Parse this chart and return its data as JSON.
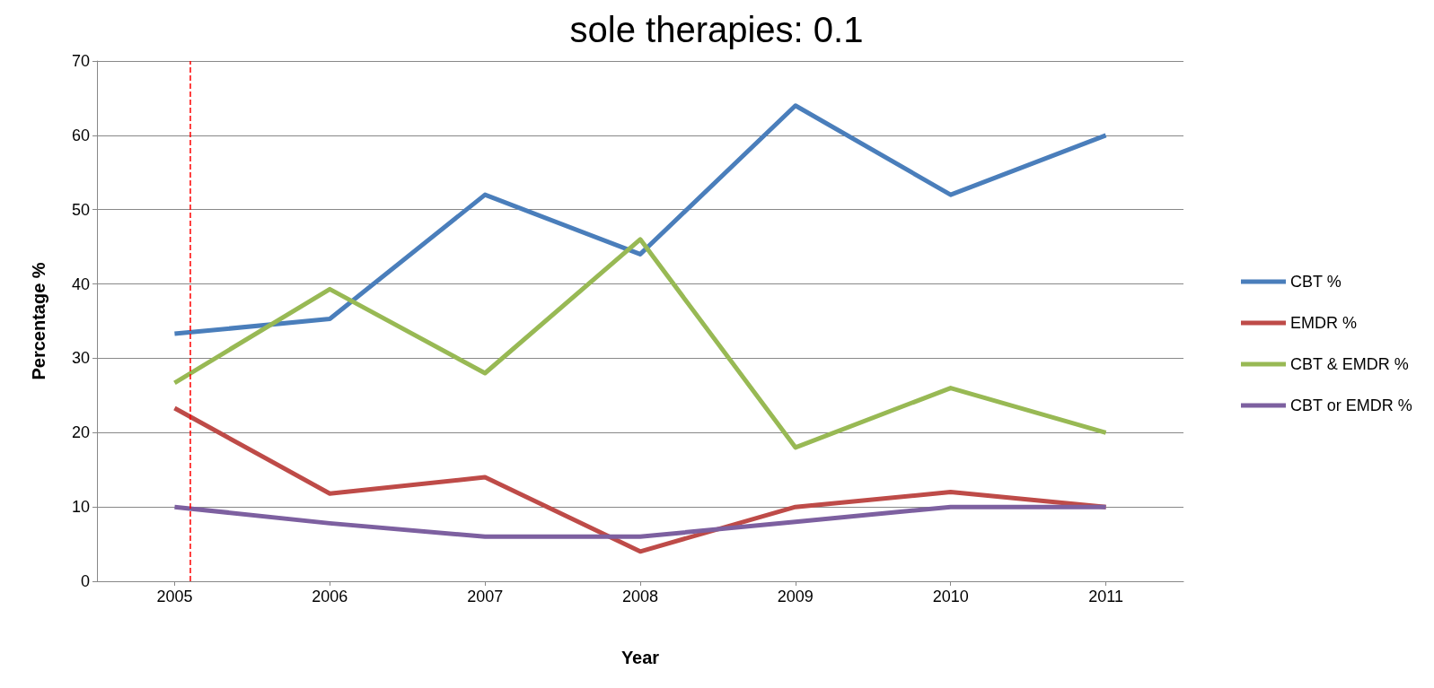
{
  "chart_data": {
    "type": "line",
    "title": "sole therapies: 0.1",
    "xlabel": "Year",
    "ylabel": "Percentage %",
    "x": [
      2005,
      2006,
      2007,
      2008,
      2009,
      2010,
      2011
    ],
    "series": [
      {
        "name": "CBT %",
        "color": "#4a7ebb",
        "values": [
          33.3,
          35.3,
          52,
          44,
          64,
          52,
          60
        ]
      },
      {
        "name": "EMDR %",
        "color": "#be4b48",
        "values": [
          23.3,
          11.8,
          14,
          4,
          10,
          12,
          10
        ]
      },
      {
        "name": "CBT & EMDR %",
        "color": "#98b954",
        "values": [
          26.7,
          39.3,
          28,
          46,
          18,
          26,
          20
        ]
      },
      {
        "name": "CBT or EMDR %",
        "color": "#7d60a0",
        "values": [
          10,
          7.8,
          6,
          6,
          8,
          10,
          10
        ]
      }
    ],
    "xlim": [
      2004.5,
      2011.5
    ],
    "xticks": [
      2005,
      2006,
      2007,
      2008,
      2009,
      2010,
      2011
    ],
    "ylim": [
      0,
      70
    ],
    "yticks": [
      0,
      10,
      20,
      30,
      40,
      50,
      60,
      70
    ],
    "ref_lines": [
      {
        "axis": "x",
        "value": 2005.1,
        "color": "#ff0000",
        "line_style": "dashed"
      }
    ],
    "grid": "y",
    "legend": "right"
  }
}
